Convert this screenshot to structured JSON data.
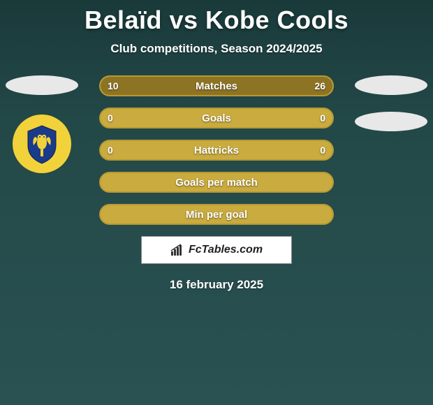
{
  "title": "Belaïd vs Kobe Cools",
  "subtitle": "Club competitions, Season 2024/2025",
  "colors": {
    "accent": "#b89a2f",
    "accent_light": "#c9ab3f",
    "fill_dark": "#8d7424"
  },
  "rows": [
    {
      "label": "Matches",
      "left": "10",
      "right": "26",
      "left_fill_pct": 28,
      "right_fill_pct": 72
    },
    {
      "label": "Goals",
      "left": "0",
      "right": "0",
      "left_fill_pct": 0,
      "right_fill_pct": 0
    },
    {
      "label": "Hattricks",
      "left": "0",
      "right": "0",
      "left_fill_pct": 0,
      "right_fill_pct": 0
    },
    {
      "label": "Goals per match",
      "left": "",
      "right": "",
      "left_fill_pct": 0,
      "right_fill_pct": 0
    },
    {
      "label": "Min per goal",
      "left": "",
      "right": "",
      "left_fill_pct": 0,
      "right_fill_pct": 0
    }
  ],
  "brand": "FcTables.com",
  "date": "16 february 2025"
}
